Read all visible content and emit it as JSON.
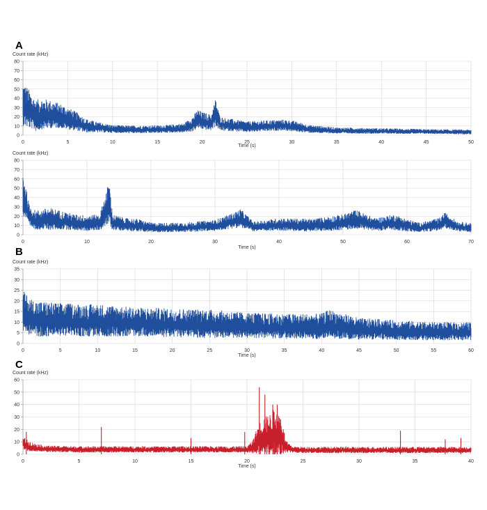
{
  "figure": {
    "panel_letters": [
      "A",
      "B",
      "C"
    ]
  },
  "chart_data": [
    {
      "type": "line",
      "panel": "A",
      "ylabel": "Count rate (kHz)",
      "xlabel": "Time (s)",
      "xlim": [
        0,
        50
      ],
      "ylim": [
        0,
        80
      ],
      "xticks": [
        0,
        5,
        10,
        15,
        20,
        25,
        30,
        35,
        40,
        45,
        50
      ],
      "yticks": [
        0,
        10,
        20,
        30,
        40,
        50,
        60,
        70,
        80
      ],
      "grid": true,
      "color": "#1f4e9c",
      "series": [
        {
          "x": [
            0,
            0.5,
            1,
            1.5,
            2,
            3,
            4,
            5,
            6,
            7,
            8,
            9,
            10,
            12,
            14,
            16,
            18,
            19,
            19.5,
            20,
            20.5,
            21,
            21.5,
            22,
            23,
            25,
            27,
            29,
            30,
            32,
            35,
            40,
            45,
            50
          ],
          "y": [
            30,
            26,
            22,
            18,
            20,
            20,
            19,
            16,
            13,
            9,
            8,
            7,
            6,
            5.5,
            5.5,
            6,
            7,
            11,
            16,
            14,
            13,
            12,
            22,
            11,
            10,
            8,
            9,
            10,
            9,
            6,
            4.5,
            4,
            3.5,
            3
          ],
          "spread": [
            28,
            26,
            22,
            20,
            20,
            18,
            16,
            14,
            12,
            9,
            7,
            6,
            5,
            5,
            5,
            5,
            6,
            10,
            12,
            11,
            11,
            10,
            18,
            9,
            8,
            7,
            7,
            7,
            7,
            5,
            4,
            3.5,
            3,
            3
          ]
        }
      ]
    },
    {
      "type": "line",
      "panel": "A2",
      "ylabel": "Count rate (kHz)",
      "xlabel": "Time (s)",
      "xlim": [
        0,
        70
      ],
      "ylim": [
        0,
        80
      ],
      "xticks": [
        0,
        10,
        20,
        30,
        40,
        50,
        60,
        70
      ],
      "yticks": [
        0,
        10,
        20,
        30,
        40,
        50,
        60,
        70,
        80
      ],
      "grid": true,
      "color": "#1f4e9c",
      "series": [
        {
          "x": [
            0,
            0.5,
            1,
            2,
            4,
            6,
            8,
            10,
            12,
            13,
            13.5,
            14,
            16,
            18,
            20,
            25,
            30,
            33,
            34,
            36,
            40,
            45,
            50,
            52,
            55,
            58,
            60,
            62,
            65,
            66,
            68,
            70
          ],
          "y": [
            40,
            30,
            18,
            14,
            15,
            14,
            12,
            11,
            12,
            25,
            30,
            12,
            10,
            9,
            7,
            7,
            9,
            14,
            16,
            8,
            10,
            9,
            12,
            15,
            10,
            12,
            9,
            7,
            10,
            14,
            8,
            7
          ],
          "spread": [
            30,
            20,
            14,
            12,
            14,
            12,
            10,
            10,
            10,
            22,
            28,
            10,
            8,
            8,
            6,
            6,
            7,
            10,
            12,
            6,
            8,
            8,
            10,
            12,
            8,
            10,
            8,
            6,
            8,
            10,
            6,
            6
          ]
        }
      ]
    },
    {
      "type": "line",
      "panel": "B",
      "ylabel": "Count rate (kHz)",
      "xlabel": "Time (s)",
      "xlim": [
        0,
        60
      ],
      "ylim": [
        0,
        35
      ],
      "xticks": [
        0,
        5,
        10,
        15,
        20,
        25,
        30,
        35,
        40,
        45,
        50,
        55,
        60
      ],
      "yticks": [
        0,
        5,
        10,
        15,
        20,
        25,
        30,
        35
      ],
      "grid": true,
      "color": "#1f4e9c",
      "series": [
        {
          "x": [
            0,
            1,
            2,
            5,
            8,
            10,
            15,
            20,
            25,
            30,
            35,
            40,
            41,
            45,
            50,
            55,
            60
          ],
          "y": [
            13,
            11,
            10,
            10,
            9.5,
            9.5,
            9,
            8.5,
            8,
            7.5,
            7,
            7,
            8,
            6,
            5.5,
            5,
            5
          ],
          "spread": [
            12,
            10,
            10,
            9,
            9,
            9,
            8,
            8,
            8,
            7,
            7,
            7,
            8,
            6,
            5.5,
            5,
            5
          ]
        }
      ]
    },
    {
      "type": "line",
      "panel": "C",
      "ylabel": "Count rate (kHz)",
      "xlabel": "Time (s)",
      "xlim": [
        0,
        40
      ],
      "ylim": [
        0,
        60
      ],
      "xticks": [
        0,
        5,
        10,
        15,
        20,
        25,
        30,
        35,
        40
      ],
      "yticks": [
        0,
        10,
        20,
        30,
        40,
        50,
        60
      ],
      "grid": true,
      "color": "#c8202a",
      "series": [
        {
          "x": [
            0,
            0.5,
            1,
            2,
            5,
            10,
            15,
            20,
            20.5,
            21,
            21.5,
            22,
            22.5,
            23,
            23.5,
            24,
            25,
            30,
            35,
            40
          ],
          "y": [
            8,
            6,
            5,
            4,
            3.5,
            3.5,
            3.5,
            3.5,
            5,
            10,
            12,
            12,
            14,
            12,
            5,
            3.5,
            3,
            3,
            3,
            3
          ],
          "spread": [
            6,
            5,
            4,
            3,
            3,
            3,
            3,
            3,
            6,
            14,
            18,
            20,
            24,
            20,
            6,
            3,
            3,
            3,
            3,
            3
          ],
          "spikes": [
            [
              0.3,
              18
            ],
            [
              7,
              22
            ],
            [
              15,
              13
            ],
            [
              19.8,
              18
            ],
            [
              21.1,
              54
            ],
            [
              21.6,
              48
            ],
            [
              22.3,
              40
            ],
            [
              22.7,
              40
            ],
            [
              23,
              28
            ],
            [
              33.7,
              19
            ],
            [
              37.7,
              12
            ],
            [
              39.1,
              13
            ]
          ]
        }
      ]
    }
  ]
}
